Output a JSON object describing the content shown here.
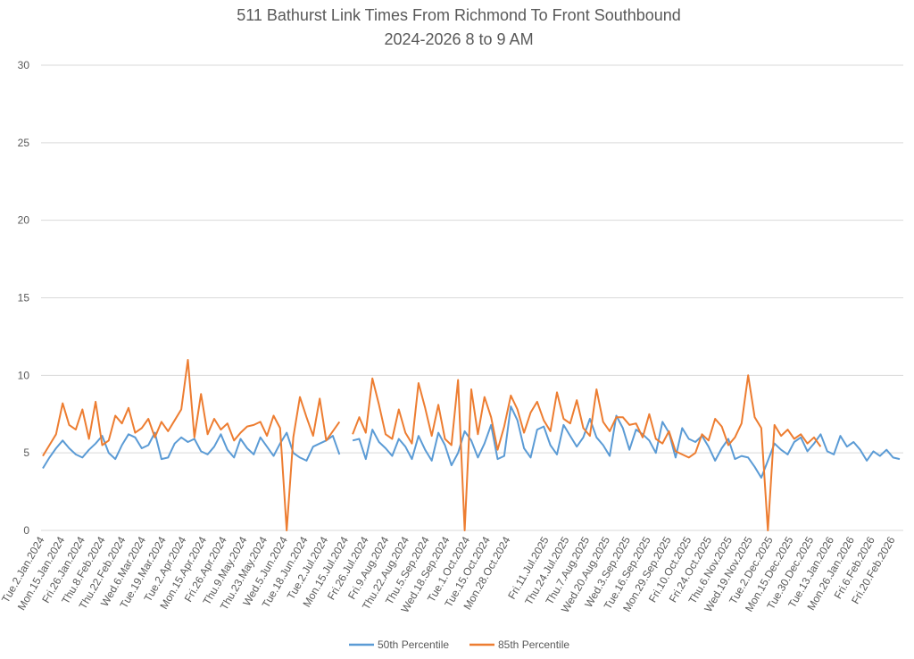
{
  "chart_data": {
    "type": "line",
    "title": "511 Bathurst Link Times From Richmond To Front Southbound",
    "subtitle": "2024-2026 8 to 9 AM",
    "ylim": [
      0,
      30
    ],
    "yticks": [
      0,
      5,
      10,
      15,
      20,
      25,
      30
    ],
    "grid": true,
    "legend_position": "bottom",
    "gap_after_index": 45,
    "x_tick_labels": [
      "Tue.2.Jan.2024",
      "Mon.15.Jan.2024",
      "Fri.26.Jan.2024",
      "Thu.8.Feb.2024",
      "Thu.22.Feb.2024",
      "Wed.6.Mar.2024",
      "Tue.19.Mar.2024",
      "Tue.2.Apr.2024",
      "Mon.15.Apr.2024",
      "Fri.26.Apr.2024",
      "Thu.9.May.2024",
      "Thu.23.May.2024",
      "Wed.5.Jun.2024",
      "Tue.18.Jun.2024",
      "Tue.2.Jul.2024",
      "Mon.15.Jul.2024",
      "Fri.26.Jul.2024",
      "Fri.9.Aug.2024",
      "Thu.22.Aug.2024",
      "Thu.5.Sep.2024",
      "Wed.18.Sep.2024",
      "Tue.1.Oct.2024",
      "Tue.15.Oct.2024",
      "Mon.28.Oct.2024",
      "Fri.11.Jul.2025",
      "Thu.24.Jul.2025",
      "Thu.7.Aug.2025",
      "Wed.20.Aug.2025",
      "Wed.3.Sep.2025",
      "Tue.16.Sep.2025",
      "Mon.29.Sep.2025",
      "Fri.10.Oct.2025",
      "Fri.24.Oct.2025",
      "Thu.6.Nov.2025",
      "Wed.19.Nov.2025",
      "Tue.2.Dec.2025",
      "Mon.15.Dec.2025",
      "Tue.30.Dec.2025",
      "Tue.13.Jan.2026",
      "Mon.26.Jan.2026",
      "Fri.6.Feb.2026",
      "Fri.20.Feb.2026"
    ],
    "series": [
      {
        "name": "50th Percentile",
        "color": "#5B9BD5",
        "values": [
          4.0,
          4.7,
          5.3,
          5.8,
          5.3,
          4.9,
          4.7,
          5.2,
          5.6,
          6.1,
          5.0,
          4.6,
          5.5,
          6.2,
          6.0,
          5.3,
          5.5,
          6.3,
          4.6,
          4.7,
          5.6,
          6.0,
          5.7,
          5.9,
          5.1,
          4.9,
          5.4,
          6.2,
          5.2,
          4.7,
          5.9,
          5.3,
          4.9,
          6.0,
          5.4,
          4.8,
          5.6,
          6.3,
          5.0,
          4.7,
          4.5,
          5.4,
          5.6,
          5.8,
          6.1,
          4.9,
          null,
          5.8,
          5.9,
          4.6,
          6.5,
          5.7,
          5.3,
          4.8,
          5.9,
          5.4,
          4.6,
          6.1,
          5.2,
          4.5,
          6.3,
          5.5,
          4.2,
          5.0,
          6.4,
          5.8,
          4.7,
          5.6,
          6.8,
          4.6,
          4.8,
          8.0,
          7.1,
          5.3,
          4.7,
          6.5,
          6.7,
          5.5,
          4.9,
          6.8,
          6.1,
          5.4,
          6.0,
          7.2,
          6.0,
          5.5,
          4.8,
          7.4,
          6.6,
          5.2,
          6.5,
          6.2,
          5.8,
          5.0,
          7.0,
          6.3,
          4.7,
          6.6,
          5.9,
          5.7,
          6.1,
          5.4,
          4.5,
          5.3,
          5.9,
          4.6,
          4.8,
          4.7,
          4.1,
          3.4,
          4.5,
          5.6,
          5.2,
          4.9,
          5.7,
          6.0,
          5.1,
          5.6,
          6.2,
          5.1,
          4.9,
          6.1,
          5.4,
          5.7,
          5.2,
          4.5,
          5.1,
          4.8,
          5.2,
          4.7,
          4.6
        ]
      },
      {
        "name": "85th Percentile",
        "color": "#ED7D31",
        "values": [
          4.8,
          5.5,
          6.2,
          8.2,
          6.8,
          6.5,
          7.8,
          5.9,
          8.3,
          5.5,
          5.8,
          7.4,
          6.9,
          7.9,
          6.3,
          6.6,
          7.2,
          6.0,
          7.0,
          6.4,
          7.1,
          7.8,
          11.0,
          6.0,
          8.8,
          6.2,
          7.2,
          6.5,
          6.9,
          5.8,
          6.3,
          6.7,
          6.8,
          7.0,
          6.1,
          7.4,
          6.6,
          0.0,
          6.0,
          8.6,
          7.3,
          6.1,
          8.5,
          5.8,
          6.4,
          7.0,
          null,
          6.2,
          7.3,
          6.3,
          9.8,
          8.1,
          6.2,
          5.9,
          7.8,
          6.3,
          5.6,
          9.5,
          7.9,
          6.1,
          8.1,
          5.9,
          5.5,
          9.7,
          0.0,
          9.1,
          6.2,
          8.6,
          7.3,
          5.2,
          6.7,
          8.7,
          7.8,
          6.3,
          7.6,
          8.3,
          7.1,
          6.4,
          8.9,
          7.2,
          6.9,
          8.4,
          6.6,
          6.1,
          9.1,
          7.0,
          6.4,
          7.3,
          7.3,
          6.8,
          6.9,
          6.0,
          7.5,
          5.9,
          5.6,
          6.4,
          5.1,
          4.9,
          4.7,
          5.0,
          6.2,
          5.8,
          7.2,
          6.7,
          5.5,
          6.0,
          6.9,
          10.0,
          7.3,
          6.6,
          0.0,
          6.8,
          6.1,
          6.5,
          5.9,
          6.2,
          5.6,
          6.0,
          5.4
        ]
      }
    ]
  }
}
